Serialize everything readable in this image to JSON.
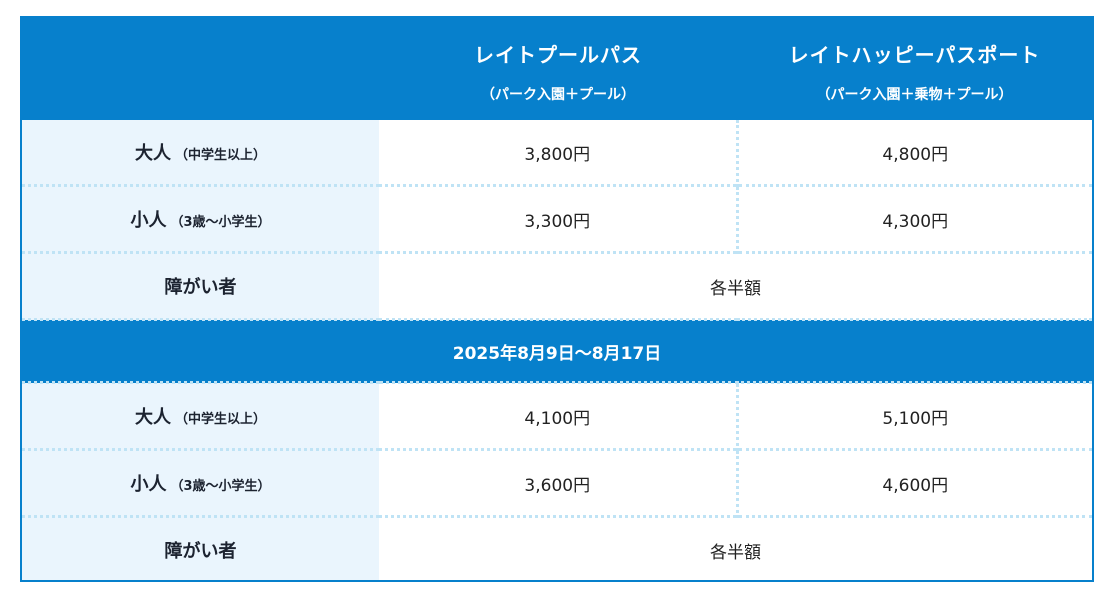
{
  "header": {
    "empty_label": "",
    "columns": [
      {
        "name": "レイトプールパス",
        "sub": "（パーク入園＋プール）"
      },
      {
        "name": "レイトハッピーパスポート",
        "sub": "（パーク入園＋乗物＋プール）"
      }
    ]
  },
  "period1": {
    "rows": [
      {
        "label": "大人",
        "note": "（中学生以上）",
        "price_a": "3,800円",
        "price_b": "4,800円"
      },
      {
        "label": "小人",
        "note": "（3歳〜小学生）",
        "price_a": "3,300円",
        "price_b": "4,300円"
      },
      {
        "label": "障がい者",
        "note": "",
        "merged": "各半額"
      }
    ]
  },
  "period2": {
    "title": "2025年8月9日〜8月17日",
    "rows": [
      {
        "label": "大人",
        "note": "（中学生以上）",
        "price_a": "4,100円",
        "price_b": "5,100円"
      },
      {
        "label": "小人",
        "note": "（3歳〜小学生）",
        "price_a": "3,600円",
        "price_b": "4,600円"
      },
      {
        "label": "障がい者",
        "note": "",
        "merged": "各半額"
      }
    ]
  },
  "colors": {
    "header_blue": "#0780cc",
    "label_bg": "#eaf5fd",
    "dotted": "#bfe3f5"
  }
}
